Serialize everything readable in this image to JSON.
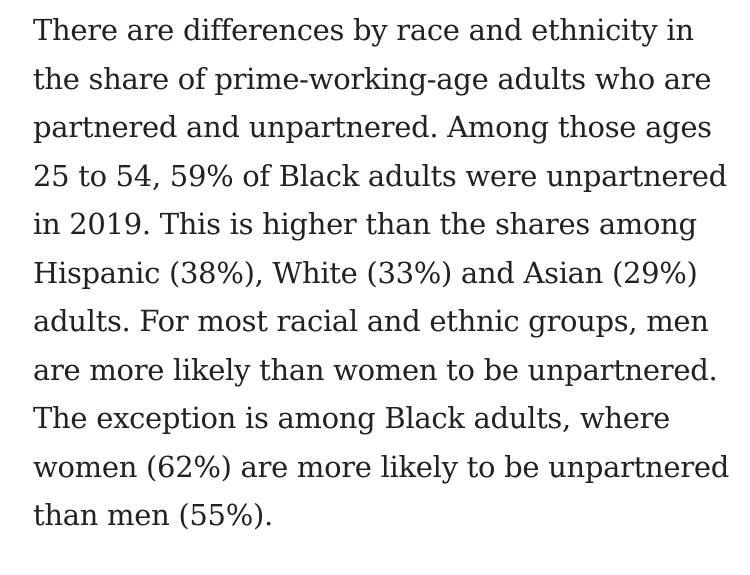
{
  "paragraph": {
    "lines": [
      "There are differences by race and ethnicity in",
      "the share of prime-working-age adults who are",
      "partnered and unpartnered. Among those ages",
      "25 to 54, 59% of Black adults were unpartnered",
      "in 2019. This is higher than the shares among",
      "Hispanic (38%), White (33%) and Asian (29%)",
      "adults. For most racial and ethnic groups, men",
      "are more likely than women to be unpartnered.",
      "The exception is among Black adults, where",
      "women (62%) are more likely to be unpartnered",
      "than men (55%)."
    ]
  }
}
